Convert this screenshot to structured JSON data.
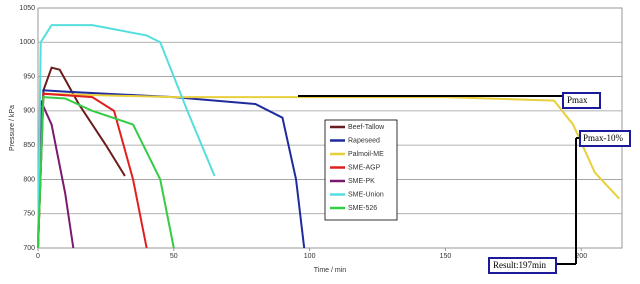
{
  "chart_data": {
    "type": "line",
    "xlabel": "Time / min",
    "ylabel": "Pressure / kPa",
    "xlim": [
      0,
      215
    ],
    "xticks": [
      0,
      50,
      100,
      150,
      200
    ],
    "ylim": [
      700,
      1050
    ],
    "yticks": [
      700,
      750,
      800,
      850,
      900,
      950,
      1000,
      1050
    ],
    "grid": true,
    "legend": "center",
    "series": [
      {
        "name": "Beef-Tallow",
        "color": "#6b1c1c",
        "x": [
          0,
          2,
          5,
          8,
          15,
          25,
          32
        ],
        "values": [
          700,
          930,
          963,
          960,
          910,
          850,
          805
        ]
      },
      {
        "name": "Rapeseed",
        "color": "#1f2a9e",
        "x": [
          0,
          2,
          10,
          50,
          80,
          90,
          95,
          98
        ],
        "values": [
          700,
          930,
          928,
          920,
          910,
          890,
          800,
          700
        ]
      },
      {
        "name": "Palmoil-ME",
        "color": "#e8cf3c",
        "x": [
          0,
          2,
          50,
          150,
          190,
          197,
          205,
          214
        ],
        "values": [
          700,
          925,
          920,
          920,
          915,
          880,
          810,
          772
        ]
      },
      {
        "name": "SME-AGP",
        "color": "#e02020",
        "x": [
          0,
          2,
          20,
          28,
          35,
          40
        ],
        "values": [
          700,
          925,
          920,
          900,
          800,
          700
        ]
      },
      {
        "name": "SME-PK",
        "color": "#7a1a6e",
        "x": [
          0,
          1,
          5,
          10,
          13
        ],
        "values": [
          700,
          915,
          880,
          780,
          700
        ]
      },
      {
        "name": "SME-Union",
        "color": "#55dede",
        "x": [
          0,
          1,
          5,
          20,
          40,
          45,
          55,
          65
        ],
        "values": [
          700,
          1000,
          1025,
          1025,
          1010,
          1000,
          900,
          805
        ]
      },
      {
        "name": "SME-526",
        "color": "#33cc44",
        "x": [
          0,
          2,
          10,
          20,
          35,
          45,
          50
        ],
        "values": [
          700,
          920,
          918,
          900,
          880,
          800,
          700
        ]
      }
    ],
    "annotations": [
      "Pmax",
      "Pmax-10%",
      "Result:197min"
    ]
  }
}
